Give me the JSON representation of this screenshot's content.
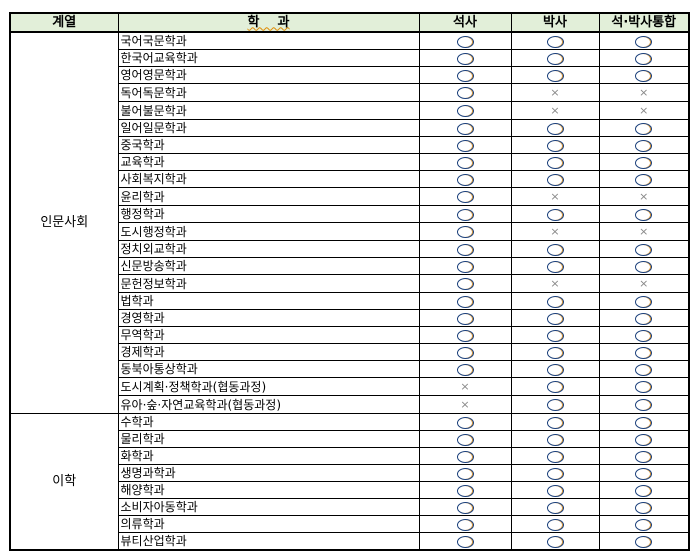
{
  "header": {
    "group": "계열",
    "dept": "학    과",
    "master": "석사",
    "doctor": "박사",
    "integrated": "석·박사통합"
  },
  "symbols": {
    "yes": "○",
    "no": "×"
  },
  "groups": [
    {
      "name": "인문사회",
      "rows": [
        {
          "dept": "국어국문학과",
          "m": "O",
          "d": "O",
          "i": "O"
        },
        {
          "dept": "한국어교육학과",
          "m": "O",
          "d": "O",
          "i": "O"
        },
        {
          "dept": "영어영문학과",
          "m": "O",
          "d": "O",
          "i": "O"
        },
        {
          "dept": "독어독문학과",
          "m": "O",
          "d": "X",
          "i": "X"
        },
        {
          "dept": "불어불문학과",
          "m": "O",
          "d": "X",
          "i": "X"
        },
        {
          "dept": "일어일문학과",
          "m": "O",
          "d": "O",
          "i": "O"
        },
        {
          "dept": "중국학과",
          "m": "O",
          "d": "O",
          "i": "O"
        },
        {
          "dept": "교육학과",
          "m": "O",
          "d": "O",
          "i": "O"
        },
        {
          "dept": "사회복지학과",
          "m": "O",
          "d": "O",
          "i": "O"
        },
        {
          "dept": "윤리학과",
          "m": "O",
          "d": "X",
          "i": "X"
        },
        {
          "dept": "행정학과",
          "m": "O",
          "d": "O",
          "i": "O"
        },
        {
          "dept": "도시행정학과",
          "m": "O",
          "d": "X",
          "i": "X"
        },
        {
          "dept": "정치외교학과",
          "m": "O",
          "d": "O",
          "i": "O"
        },
        {
          "dept": "신문방송학과",
          "m": "O",
          "d": "O",
          "i": "O"
        },
        {
          "dept": "문헌정보학과",
          "m": "O",
          "d": "X",
          "i": "X"
        },
        {
          "dept": "법학과",
          "m": "O",
          "d": "O",
          "i": "O"
        },
        {
          "dept": "경영학과",
          "m": "O",
          "d": "O",
          "i": "O"
        },
        {
          "dept": "무역학과",
          "m": "O",
          "d": "O",
          "i": "O"
        },
        {
          "dept": "경제학과",
          "m": "O",
          "d": "O",
          "i": "O"
        },
        {
          "dept": "동북아통상학과",
          "m": "O",
          "d": "O",
          "i": "O"
        },
        {
          "dept": "도시계획·정책학과(협동과정)",
          "m": "X",
          "d": "O",
          "i": "O"
        },
        {
          "dept": "유아·숲·자연교육학과(협동과정)",
          "m": "X",
          "d": "O",
          "i": "O"
        }
      ]
    },
    {
      "name": "이학",
      "rows": [
        {
          "dept": "수학과",
          "m": "O",
          "d": "O",
          "i": "O"
        },
        {
          "dept": "물리학과",
          "m": "O",
          "d": "O",
          "i": "O"
        },
        {
          "dept": "화학과",
          "m": "O",
          "d": "O",
          "i": "O"
        },
        {
          "dept": "생명과학과",
          "m": "O",
          "d": "O",
          "i": "O"
        },
        {
          "dept": "해양학과",
          "m": "O",
          "d": "O",
          "i": "O"
        },
        {
          "dept": "소비자아동학과",
          "m": "O",
          "d": "O",
          "i": "O"
        },
        {
          "dept": "의류학과",
          "m": "O",
          "d": "O",
          "i": "O"
        },
        {
          "dept": "뷰티산업학과",
          "m": "O",
          "d": "O",
          "i": "O"
        }
      ]
    }
  ]
}
